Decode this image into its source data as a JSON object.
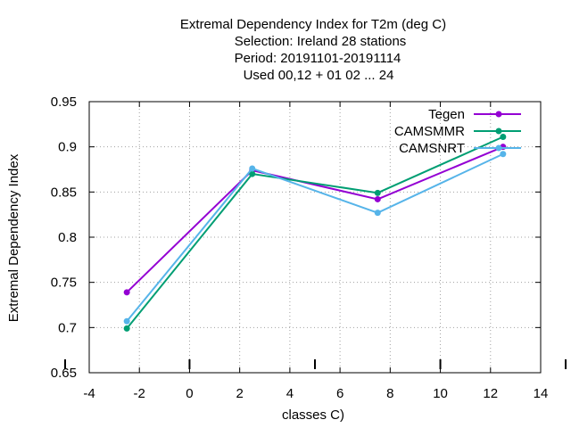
{
  "chart_data": {
    "type": "line",
    "title_lines": [
      "Extremal Dependency Index  for T2m (deg C)",
      "Selection: Ireland     28 stations",
      "Period: 20191101-20191114",
      "Used  00,12  + 01 02 ... 24"
    ],
    "xlabel": "classes C)",
    "ylabel": "Extremal Dependency Index",
    "xlim": [
      -4,
      14
    ],
    "ylim": [
      0.65,
      0.95
    ],
    "x_ticks": [
      -4,
      -2,
      0,
      2,
      4,
      6,
      8,
      10,
      12,
      14
    ],
    "x_tick_labels": [
      "-4",
      "-2",
      "0",
      "2",
      "4",
      "6",
      "8",
      "10",
      "12",
      "14"
    ],
    "y_ticks": [
      0.65,
      0.7,
      0.75,
      0.8,
      0.85,
      0.9,
      0.95
    ],
    "y_tick_labels": [
      "0.65",
      "0.7",
      "0.75",
      "0.8",
      "0.85",
      "0.9",
      "0.95"
    ],
    "grid": true,
    "legend_position": "top-right",
    "x": [
      -2.5,
      2.5,
      7.5,
      12.5
    ],
    "series": [
      {
        "name": "Tegen",
        "color": "#9400d3",
        "values": [
          0.739,
          0.874,
          0.842,
          0.9
        ]
      },
      {
        "name": "CAMSMMR",
        "color": "#009e73",
        "values": [
          0.699,
          0.87,
          0.849,
          0.911
        ]
      },
      {
        "name": "CAMSNRT",
        "color": "#56b4e9",
        "values": [
          0.707,
          0.876,
          0.827,
          0.892
        ]
      }
    ],
    "bottom_markers_x": [
      -4,
      0,
      5,
      10,
      15
    ]
  }
}
